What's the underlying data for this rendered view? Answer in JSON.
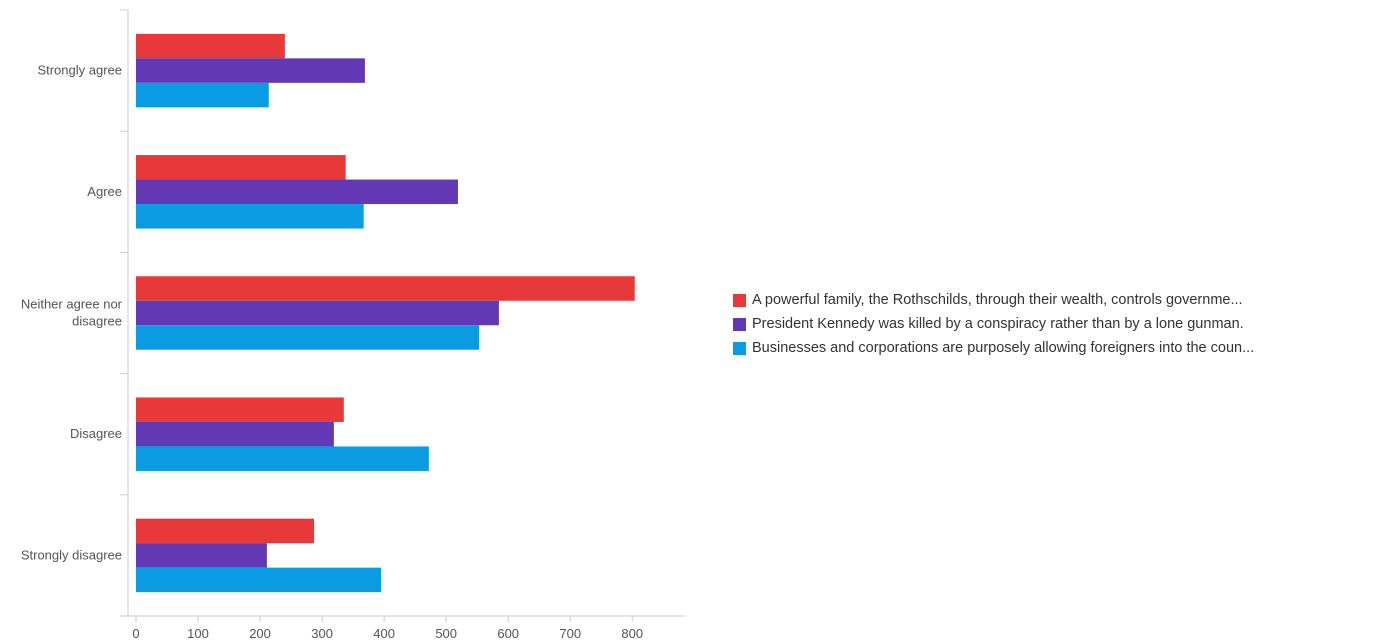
{
  "chart_data": {
    "type": "bar",
    "orientation": "horizontal",
    "categories": [
      "Strongly agree",
      "Agree",
      "Neither agree nor disagree",
      "Disagree",
      "Strongly disagree"
    ],
    "category_lines": [
      [
        "Strongly agree"
      ],
      [
        "Agree"
      ],
      [
        "Neither agree nor",
        "disagree"
      ],
      [
        "Disagree"
      ],
      [
        "Strongly disagree"
      ]
    ],
    "series": [
      {
        "name": "A powerful family, the Rothschilds, through their wealth, controls governme...",
        "color": "#e8393a",
        "values": [
          240,
          338,
          804,
          335,
          287
        ]
      },
      {
        "name": "President Kennedy was killed by a conspiracy rather than by a lone gunman.",
        "color": "#6238b4",
        "values": [
          369,
          519,
          585,
          319,
          211
        ]
      },
      {
        "name": "Businesses and corporations are purposely allowing foreigners into the coun...",
        "color": "#0b9be3",
        "values": [
          214,
          367,
          553,
          472,
          395
        ]
      }
    ],
    "x_ticks": [
      0,
      100,
      200,
      300,
      400,
      500,
      600,
      700,
      800
    ],
    "xlim": [
      0,
      885
    ],
    "legend_position": "right",
    "grid": false
  }
}
